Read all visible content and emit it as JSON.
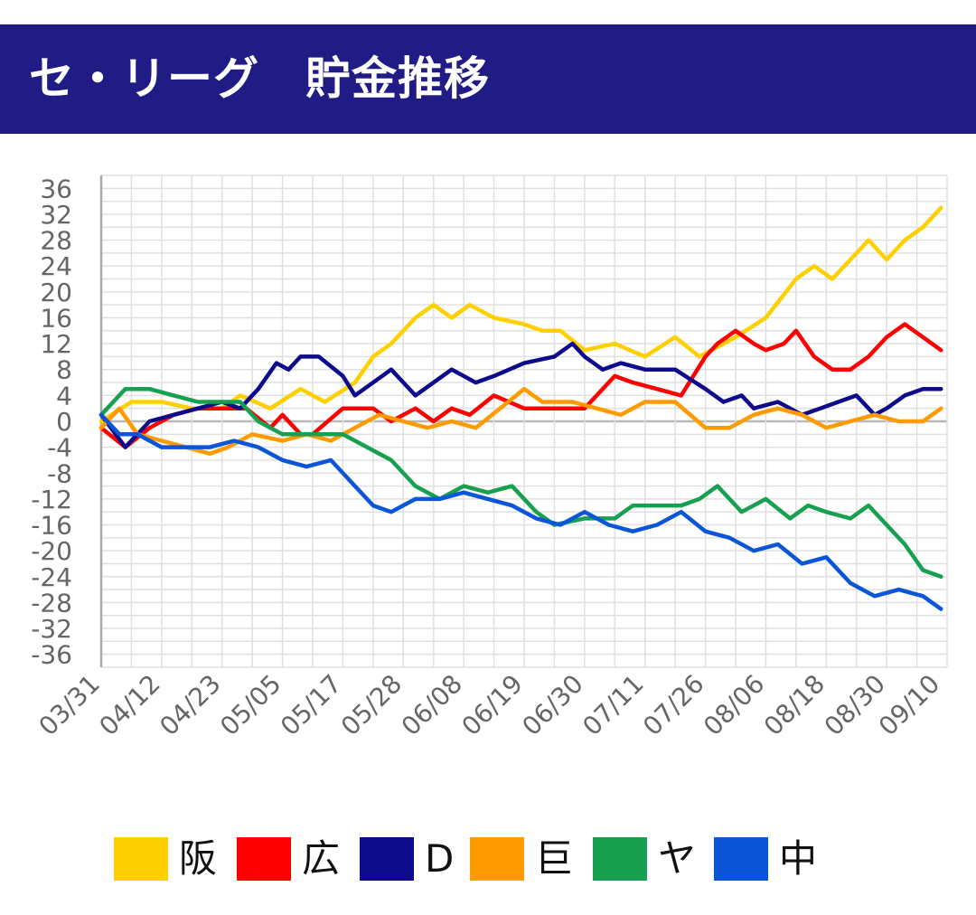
{
  "header": {
    "title": "セ・リーグ　貯金推移"
  },
  "chart_data": {
    "type": "line",
    "title": "セ・リーグ　貯金推移",
    "xlabel": "",
    "ylabel": "",
    "ylim": [
      -38,
      38
    ],
    "yticks": [
      36,
      32,
      28,
      24,
      20,
      16,
      12,
      8,
      4,
      0,
      -4,
      -8,
      -12,
      -16,
      -20,
      -24,
      -28,
      -32,
      -36
    ],
    "xlim": [
      0,
      140
    ],
    "xtick_positions": [
      0,
      10,
      20,
      30,
      40,
      50,
      60,
      70,
      80,
      90,
      100,
      110,
      120,
      130,
      139
    ],
    "xtick_labels": [
      "03/31",
      "04/12",
      "04/23",
      "05/05",
      "05/17",
      "05/28",
      "06/08",
      "06/19",
      "06/30",
      "07/11",
      "07/26",
      "08/06",
      "08/18",
      "08/30",
      "09/10"
    ],
    "grid": true,
    "legend_position": "bottom",
    "series": [
      {
        "name": "阪",
        "color": "#ffd000",
        "points": [
          [
            0,
            0
          ],
          [
            5,
            3
          ],
          [
            10,
            3
          ],
          [
            15,
            2
          ],
          [
            20,
            2
          ],
          [
            23,
            4
          ],
          [
            28,
            2
          ],
          [
            33,
            5
          ],
          [
            37,
            3
          ],
          [
            42,
            6
          ],
          [
            45,
            10
          ],
          [
            48,
            12
          ],
          [
            52,
            16
          ],
          [
            55,
            18
          ],
          [
            58,
            16
          ],
          [
            61,
            18
          ],
          [
            65,
            16
          ],
          [
            70,
            15
          ],
          [
            73,
            14
          ],
          [
            76,
            14
          ],
          [
            80,
            11
          ],
          [
            85,
            12
          ],
          [
            90,
            10
          ],
          [
            95,
            13
          ],
          [
            99,
            10
          ],
          [
            105,
            13
          ],
          [
            110,
            16
          ],
          [
            115,
            22
          ],
          [
            118,
            24
          ],
          [
            121,
            22
          ],
          [
            124,
            25
          ],
          [
            127,
            28
          ],
          [
            130,
            25
          ],
          [
            133,
            28
          ],
          [
            136,
            30
          ],
          [
            139,
            33
          ]
        ]
      },
      {
        "name": "広",
        "color": "#ff0000",
        "points": [
          [
            0,
            -1
          ],
          [
            4,
            -4
          ],
          [
            8,
            -1
          ],
          [
            12,
            1
          ],
          [
            16,
            2
          ],
          [
            20,
            2
          ],
          [
            24,
            2
          ],
          [
            28,
            -1
          ],
          [
            30,
            1
          ],
          [
            33,
            -2
          ],
          [
            35,
            -2
          ],
          [
            40,
            2
          ],
          [
            45,
            2
          ],
          [
            48,
            0
          ],
          [
            52,
            2
          ],
          [
            55,
            0
          ],
          [
            58,
            2
          ],
          [
            61,
            1
          ],
          [
            65,
            4
          ],
          [
            70,
            2
          ],
          [
            75,
            2
          ],
          [
            80,
            2
          ],
          [
            85,
            7
          ],
          [
            88,
            6
          ],
          [
            92,
            5
          ],
          [
            96,
            4
          ],
          [
            100,
            10
          ],
          [
            102,
            12
          ],
          [
            105,
            14
          ],
          [
            108,
            12
          ],
          [
            110,
            11
          ],
          [
            113,
            12
          ],
          [
            115,
            14
          ],
          [
            118,
            10
          ],
          [
            121,
            8
          ],
          [
            124,
            8
          ],
          [
            127,
            10
          ],
          [
            130,
            13
          ],
          [
            133,
            15
          ],
          [
            136,
            13
          ],
          [
            139,
            11
          ]
        ]
      },
      {
        "name": "D",
        "color": "#0d0a8c",
        "points": [
          [
            0,
            1
          ],
          [
            4,
            -4
          ],
          [
            8,
            0
          ],
          [
            12,
            1
          ],
          [
            16,
            2
          ],
          [
            20,
            3
          ],
          [
            23,
            2
          ],
          [
            26,
            5
          ],
          [
            29,
            9
          ],
          [
            31,
            8
          ],
          [
            33,
            10
          ],
          [
            36,
            10
          ],
          [
            40,
            7
          ],
          [
            42,
            4
          ],
          [
            45,
            6
          ],
          [
            48,
            8
          ],
          [
            52,
            4
          ],
          [
            55,
            6
          ],
          [
            58,
            8
          ],
          [
            62,
            6
          ],
          [
            65,
            7
          ],
          [
            70,
            9
          ],
          [
            75,
            10
          ],
          [
            78,
            12
          ],
          [
            80,
            10
          ],
          [
            83,
            8
          ],
          [
            86,
            9
          ],
          [
            90,
            8
          ],
          [
            95,
            8
          ],
          [
            100,
            5
          ],
          [
            103,
            3
          ],
          [
            106,
            4
          ],
          [
            108,
            2
          ],
          [
            112,
            3
          ],
          [
            116,
            1
          ],
          [
            119,
            2
          ],
          [
            122,
            3
          ],
          [
            125,
            4
          ],
          [
            128,
            1
          ],
          [
            130,
            2
          ],
          [
            133,
            4
          ],
          [
            136,
            5
          ],
          [
            139,
            5
          ]
        ]
      },
      {
        "name": "巨",
        "color": "#ff9a00",
        "points": [
          [
            0,
            -1
          ],
          [
            3,
            2
          ],
          [
            6,
            -2
          ],
          [
            10,
            -3
          ],
          [
            14,
            -4
          ],
          [
            18,
            -5
          ],
          [
            21,
            -4
          ],
          [
            25,
            -2
          ],
          [
            30,
            -3
          ],
          [
            34,
            -2
          ],
          [
            38,
            -3
          ],
          [
            42,
            -1
          ],
          [
            46,
            1
          ],
          [
            50,
            0
          ],
          [
            54,
            -1
          ],
          [
            58,
            0
          ],
          [
            62,
            -1
          ],
          [
            66,
            2
          ],
          [
            70,
            5
          ],
          [
            73,
            3
          ],
          [
            78,
            3
          ],
          [
            82,
            2
          ],
          [
            86,
            1
          ],
          [
            90,
            3
          ],
          [
            95,
            3
          ],
          [
            100,
            -1
          ],
          [
            104,
            -1
          ],
          [
            108,
            1
          ],
          [
            112,
            2
          ],
          [
            116,
            1
          ],
          [
            120,
            -1
          ],
          [
            124,
            0
          ],
          [
            128,
            1
          ],
          [
            132,
            0
          ],
          [
            136,
            0
          ],
          [
            139,
            2
          ]
        ]
      },
      {
        "name": "ヤ",
        "color": "#17a04f",
        "points": [
          [
            0,
            1
          ],
          [
            4,
            5
          ],
          [
            8,
            5
          ],
          [
            12,
            4
          ],
          [
            16,
            3
          ],
          [
            20,
            3
          ],
          [
            23,
            3
          ],
          [
            26,
            0
          ],
          [
            30,
            -2
          ],
          [
            35,
            -2
          ],
          [
            40,
            -2
          ],
          [
            44,
            -4
          ],
          [
            48,
            -6
          ],
          [
            52,
            -10
          ],
          [
            56,
            -12
          ],
          [
            60,
            -10
          ],
          [
            64,
            -11
          ],
          [
            68,
            -10
          ],
          [
            72,
            -14
          ],
          [
            75,
            -16
          ],
          [
            80,
            -15
          ],
          [
            85,
            -15
          ],
          [
            88,
            -13
          ],
          [
            92,
            -13
          ],
          [
            96,
            -13
          ],
          [
            99,
            -12
          ],
          [
            102,
            -10
          ],
          [
            106,
            -14
          ],
          [
            110,
            -12
          ],
          [
            114,
            -15
          ],
          [
            117,
            -13
          ],
          [
            120,
            -14
          ],
          [
            124,
            -15
          ],
          [
            127,
            -13
          ],
          [
            131,
            -17
          ],
          [
            133,
            -19
          ],
          [
            136,
            -23
          ],
          [
            139,
            -24
          ]
        ]
      },
      {
        "name": "中",
        "color": "#0a55d8",
        "points": [
          [
            0,
            1
          ],
          [
            3,
            -2
          ],
          [
            6,
            -2
          ],
          [
            10,
            -4
          ],
          [
            14,
            -4
          ],
          [
            18,
            -4
          ],
          [
            22,
            -3
          ],
          [
            26,
            -4
          ],
          [
            30,
            -6
          ],
          [
            34,
            -7
          ],
          [
            38,
            -6
          ],
          [
            42,
            -10
          ],
          [
            45,
            -13
          ],
          [
            48,
            -14
          ],
          [
            52,
            -12
          ],
          [
            56,
            -12
          ],
          [
            60,
            -11
          ],
          [
            64,
            -12
          ],
          [
            68,
            -13
          ],
          [
            72,
            -15
          ],
          [
            76,
            -16
          ],
          [
            80,
            -14
          ],
          [
            84,
            -16
          ],
          [
            88,
            -17
          ],
          [
            92,
            -16
          ],
          [
            96,
            -14
          ],
          [
            100,
            -17
          ],
          [
            104,
            -18
          ],
          [
            108,
            -20
          ],
          [
            112,
            -19
          ],
          [
            116,
            -22
          ],
          [
            120,
            -21
          ],
          [
            124,
            -25
          ],
          [
            128,
            -27
          ],
          [
            132,
            -26
          ],
          [
            136,
            -27
          ],
          [
            139,
            -29
          ]
        ]
      }
    ]
  }
}
